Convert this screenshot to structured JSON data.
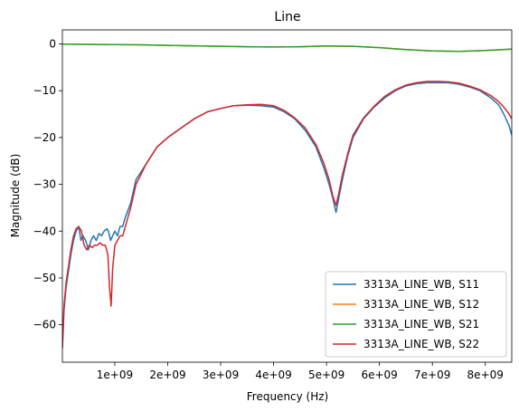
{
  "chart_data": {
    "type": "line",
    "title": "Line",
    "xlabel": "Frequency (Hz)",
    "ylabel": "Magnitude (dB)",
    "xlim": [
      10000000,
      8500000000
    ],
    "ylim": [
      -68,
      3
    ],
    "xticks": [
      1000000000,
      2000000000,
      3000000000,
      4000000000,
      5000000000,
      6000000000,
      7000000000,
      8000000000
    ],
    "xtick_labels": [
      "1e+09",
      "2e+09",
      "3e+09",
      "4e+09",
      "5e+09",
      "6e+09",
      "7e+09",
      "8e+09"
    ],
    "yticks": [
      0,
      -10,
      -20,
      -30,
      -40,
      -50,
      -60
    ],
    "ytick_labels": [
      "0",
      "−10",
      "−20",
      "−30",
      "−40",
      "−50",
      "−60"
    ],
    "grid": false,
    "legend_position": "lower-right",
    "series": [
      {
        "name": "3313A_LINE_WB, S11",
        "color": "#1f77b4",
        "points": [
          [
            10000000,
            -65
          ],
          [
            40000000,
            -57
          ],
          [
            80000000,
            -52
          ],
          [
            120000000,
            -49
          ],
          [
            170000000,
            -45
          ],
          [
            220000000,
            -42
          ],
          [
            270000000,
            -40
          ],
          [
            320000000,
            -39
          ],
          [
            360000000,
            -42
          ],
          [
            400000000,
            -41
          ],
          [
            450000000,
            -42
          ],
          [
            500000000,
            -44
          ],
          [
            550000000,
            -42
          ],
          [
            600000000,
            -41
          ],
          [
            650000000,
            -42
          ],
          [
            700000000,
            -40.5
          ],
          [
            750000000,
            -41
          ],
          [
            800000000,
            -40
          ],
          [
            850000000,
            -39.5
          ],
          [
            880000000,
            -40
          ],
          [
            920000000,
            -42
          ],
          [
            960000000,
            -41
          ],
          [
            1000000000,
            -40
          ],
          [
            1050000000,
            -41
          ],
          [
            1100000000,
            -39
          ],
          [
            1150000000,
            -39
          ],
          [
            1200000000,
            -37
          ],
          [
            1300000000,
            -34
          ],
          [
            1400000000,
            -29
          ],
          [
            1600000000,
            -25.5
          ],
          [
            1800000000,
            -22
          ],
          [
            2000000000,
            -20
          ],
          [
            2250000000,
            -18
          ],
          [
            2500000000,
            -16
          ],
          [
            2750000000,
            -14.5
          ],
          [
            3000000000,
            -13.8
          ],
          [
            3250000000,
            -13.2
          ],
          [
            3500000000,
            -13.1
          ],
          [
            3750000000,
            -13.2
          ],
          [
            4000000000,
            -13.5
          ],
          [
            4200000000,
            -14.5
          ],
          [
            4400000000,
            -16
          ],
          [
            4600000000,
            -18.5
          ],
          [
            4800000000,
            -22
          ],
          [
            4950000000,
            -26.5
          ],
          [
            5050000000,
            -30
          ],
          [
            5120000000,
            -33
          ],
          [
            5180000000,
            -36
          ],
          [
            5230000000,
            -33
          ],
          [
            5300000000,
            -29
          ],
          [
            5400000000,
            -24
          ],
          [
            5500000000,
            -20
          ],
          [
            5700000000,
            -16
          ],
          [
            5900000000,
            -13.5
          ],
          [
            6100000000,
            -11.5
          ],
          [
            6300000000,
            -10
          ],
          [
            6500000000,
            -9
          ],
          [
            6700000000,
            -8.5
          ],
          [
            6900000000,
            -8.3
          ],
          [
            7100000000,
            -8.3
          ],
          [
            7300000000,
            -8.3
          ],
          [
            7500000000,
            -8.6
          ],
          [
            7700000000,
            -9.2
          ],
          [
            7900000000,
            -10
          ],
          [
            8100000000,
            -11.5
          ],
          [
            8250000000,
            -13
          ],
          [
            8350000000,
            -15
          ],
          [
            8450000000,
            -17.5
          ],
          [
            8500000000,
            -19.5
          ]
        ]
      },
      {
        "name": "3313A_LINE_WB, S12",
        "color": "#ff7f0e",
        "points": [
          [
            10000000,
            -0.05
          ],
          [
            500000000,
            -0.1
          ],
          [
            1000000000,
            -0.15
          ],
          [
            1500000000,
            -0.2
          ],
          [
            2000000000,
            -0.3
          ],
          [
            2500000000,
            -0.4
          ],
          [
            3000000000,
            -0.5
          ],
          [
            3500000000,
            -0.6
          ],
          [
            4000000000,
            -0.65
          ],
          [
            4500000000,
            -0.6
          ],
          [
            5000000000,
            -0.45
          ],
          [
            5500000000,
            -0.5
          ],
          [
            6000000000,
            -0.8
          ],
          [
            6500000000,
            -1.2
          ],
          [
            7000000000,
            -1.5
          ],
          [
            7500000000,
            -1.6
          ],
          [
            8000000000,
            -1.4
          ],
          [
            8500000000,
            -1.1
          ]
        ]
      },
      {
        "name": "3313A_LINE_WB, S21",
        "color": "#2ca02c",
        "points": [
          [
            10000000,
            -0.05
          ],
          [
            500000000,
            -0.1
          ],
          [
            1000000000,
            -0.15
          ],
          [
            1500000000,
            -0.2
          ],
          [
            2000000000,
            -0.3
          ],
          [
            2500000000,
            -0.4
          ],
          [
            3000000000,
            -0.5
          ],
          [
            3500000000,
            -0.6
          ],
          [
            4000000000,
            -0.65
          ],
          [
            4500000000,
            -0.6
          ],
          [
            5000000000,
            -0.45
          ],
          [
            5500000000,
            -0.5
          ],
          [
            6000000000,
            -0.8
          ],
          [
            6500000000,
            -1.2
          ],
          [
            7000000000,
            -1.5
          ],
          [
            7500000000,
            -1.6
          ],
          [
            8000000000,
            -1.4
          ],
          [
            8500000000,
            -1.1
          ]
        ]
      },
      {
        "name": "3313A_LINE_WB, S22",
        "color": "#d62728",
        "points": [
          [
            10000000,
            -65
          ],
          [
            40000000,
            -56
          ],
          [
            80000000,
            -51
          ],
          [
            120000000,
            -48
          ],
          [
            170000000,
            -44
          ],
          [
            220000000,
            -41
          ],
          [
            270000000,
            -39.5
          ],
          [
            320000000,
            -39
          ],
          [
            370000000,
            -40
          ],
          [
            420000000,
            -43
          ],
          [
            470000000,
            -44
          ],
          [
            520000000,
            -43
          ],
          [
            570000000,
            -43.5
          ],
          [
            620000000,
            -43
          ],
          [
            670000000,
            -43
          ],
          [
            720000000,
            -42.5
          ],
          [
            770000000,
            -43
          ],
          [
            820000000,
            -43
          ],
          [
            870000000,
            -45
          ],
          [
            900000000,
            -52
          ],
          [
            930000000,
            -56
          ],
          [
            960000000,
            -48
          ],
          [
            1000000000,
            -43
          ],
          [
            1050000000,
            -42
          ],
          [
            1100000000,
            -41
          ],
          [
            1150000000,
            -41
          ],
          [
            1200000000,
            -39
          ],
          [
            1300000000,
            -35
          ],
          [
            1400000000,
            -30
          ],
          [
            1600000000,
            -25.5
          ],
          [
            1800000000,
            -22
          ],
          [
            2000000000,
            -20
          ],
          [
            2250000000,
            -18
          ],
          [
            2500000000,
            -16
          ],
          [
            2750000000,
            -14.5
          ],
          [
            3000000000,
            -13.8
          ],
          [
            3250000000,
            -13.2
          ],
          [
            3500000000,
            -13
          ],
          [
            3750000000,
            -12.9
          ],
          [
            4000000000,
            -13.2
          ],
          [
            4200000000,
            -14.2
          ],
          [
            4400000000,
            -15.8
          ],
          [
            4600000000,
            -18
          ],
          [
            4800000000,
            -21.5
          ],
          [
            4950000000,
            -25.5
          ],
          [
            5050000000,
            -29
          ],
          [
            5120000000,
            -32.5
          ],
          [
            5180000000,
            -34.5
          ],
          [
            5230000000,
            -32
          ],
          [
            5300000000,
            -28
          ],
          [
            5400000000,
            -23.5
          ],
          [
            5500000000,
            -19.5
          ],
          [
            5700000000,
            -15.8
          ],
          [
            5900000000,
            -13.3
          ],
          [
            6100000000,
            -11.2
          ],
          [
            6300000000,
            -9.8
          ],
          [
            6500000000,
            -8.8
          ],
          [
            6700000000,
            -8.3
          ],
          [
            6900000000,
            -8
          ],
          [
            7100000000,
            -8
          ],
          [
            7300000000,
            -8.1
          ],
          [
            7500000000,
            -8.4
          ],
          [
            7700000000,
            -9
          ],
          [
            7900000000,
            -9.8
          ],
          [
            8100000000,
            -11
          ],
          [
            8250000000,
            -12.3
          ],
          [
            8350000000,
            -13.5
          ],
          [
            8450000000,
            -15
          ],
          [
            8500000000,
            -16
          ]
        ]
      }
    ]
  }
}
